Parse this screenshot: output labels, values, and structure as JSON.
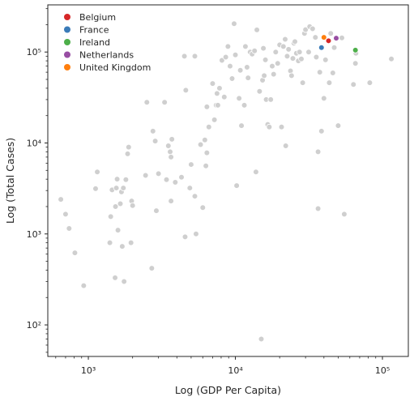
{
  "chart_data": {
    "type": "scatter",
    "xlabel": "Log (GDP Per Capita)",
    "ylabel": "Log (Total Cases)",
    "xscale": "log",
    "yscale": "log",
    "xlim": [
      530,
      150000
    ],
    "ylim": [
      45,
      330000
    ],
    "xticks": [
      {
        "value": 1000,
        "label": "10³"
      },
      {
        "value": 10000,
        "label": "10⁴"
      },
      {
        "value": 100000,
        "label": "10⁵"
      }
    ],
    "yticks": [
      {
        "value": 100,
        "label": "10²"
      },
      {
        "value": 1000,
        "label": "10³"
      },
      {
        "value": 10000,
        "label": "10⁴"
      },
      {
        "value": 100000,
        "label": "10⁵"
      }
    ],
    "grid": false,
    "legend": {
      "placement": "top-left"
    },
    "series": [
      {
        "name": "Belgium",
        "color": "#d62728",
        "points": [
          [
            43000,
            133000
          ]
        ]
      },
      {
        "name": "France",
        "color": "#3a7bb8",
        "points": [
          [
            38500,
            112000
          ]
        ]
      },
      {
        "name": "Ireland",
        "color": "#4daf4a",
        "points": [
          [
            65500,
            105000
          ]
        ]
      },
      {
        "name": "Netherlands",
        "color": "#984ea3",
        "points": [
          [
            48500,
            142000
          ]
        ]
      },
      {
        "name": "United Kingdom",
        "color": "#ff7f0e",
        "points": [
          [
            40000,
            145000
          ]
        ]
      }
    ],
    "other_countries": {
      "color": "#cfcfcf",
      "points": [
        [
          650,
          2400
        ],
        [
          700,
          1650
        ],
        [
          740,
          1150
        ],
        [
          810,
          620
        ],
        [
          930,
          270
        ],
        [
          1120,
          3150
        ],
        [
          1150,
          4800
        ],
        [
          1400,
          800
        ],
        [
          1420,
          1550
        ],
        [
          1450,
          3050
        ],
        [
          1520,
          330
        ],
        [
          1530,
          2000
        ],
        [
          1550,
          3200
        ],
        [
          1570,
          4000
        ],
        [
          1590,
          1100
        ],
        [
          1650,
          2150
        ],
        [
          1680,
          2900
        ],
        [
          1700,
          730
        ],
        [
          1730,
          3200
        ],
        [
          1750,
          300
        ],
        [
          1800,
          3950
        ],
        [
          1850,
          7600
        ],
        [
          1880,
          9000
        ],
        [
          1950,
          800
        ],
        [
          1970,
          2300
        ],
        [
          2000,
          2050
        ],
        [
          2450,
          4400
        ],
        [
          2500,
          28000
        ],
        [
          2700,
          420
        ],
        [
          2750,
          13500
        ],
        [
          2850,
          10500
        ],
        [
          2900,
          1800
        ],
        [
          3000,
          4600
        ],
        [
          3300,
          28000
        ],
        [
          3400,
          3950
        ],
        [
          3500,
          9300
        ],
        [
          3600,
          8000
        ],
        [
          3650,
          7000
        ],
        [
          3700,
          11000
        ],
        [
          3650,
          2300
        ],
        [
          3900,
          3700
        ],
        [
          4300,
          4200
        ],
        [
          4500,
          90000
        ],
        [
          4550,
          930
        ],
        [
          4600,
          38000
        ],
        [
          4900,
          3200
        ],
        [
          5000,
          5800
        ],
        [
          5300,
          90000
        ],
        [
          5400,
          1000
        ],
        [
          5300,
          2600
        ],
        [
          5800,
          9600
        ],
        [
          6000,
          1950
        ],
        [
          6200,
          10800
        ],
        [
          6300,
          5600
        ],
        [
          6400,
          7800
        ],
        [
          6400,
          25000
        ],
        [
          6600,
          15000
        ],
        [
          7000,
          45000
        ],
        [
          7200,
          18000
        ],
        [
          7400,
          26000
        ],
        [
          7500,
          35000
        ],
        [
          7600,
          26000
        ],
        [
          7800,
          40000
        ],
        [
          8100,
          81000
        ],
        [
          8400,
          32000
        ],
        [
          8600,
          88000
        ],
        [
          8900,
          115000
        ],
        [
          9200,
          70000
        ],
        [
          9500,
          51000
        ],
        [
          9800,
          205000
        ],
        [
          10000,
          93000
        ],
        [
          10200,
          3400
        ],
        [
          10600,
          31000
        ],
        [
          10800,
          63000
        ],
        [
          11000,
          15500
        ],
        [
          11500,
          26000
        ],
        [
          11700,
          115000
        ],
        [
          12000,
          68000
        ],
        [
          12200,
          52000
        ],
        [
          12600,
          100000
        ],
        [
          13000,
          95000
        ],
        [
          13500,
          103000
        ],
        [
          13800,
          4800
        ],
        [
          14000,
          175000
        ],
        [
          14600,
          37000
        ],
        [
          15000,
          70
        ],
        [
          15300,
          49000
        ],
        [
          15500,
          110000
        ],
        [
          15700,
          55000
        ],
        [
          16000,
          82000
        ],
        [
          16200,
          30000
        ],
        [
          16600,
          16000
        ],
        [
          17000,
          15000
        ],
        [
          17400,
          30000
        ],
        [
          17800,
          70000
        ],
        [
          18200,
          57000
        ],
        [
          18800,
          100000
        ],
        [
          19400,
          75000
        ],
        [
          20000,
          120000
        ],
        [
          20600,
          15000
        ],
        [
          21200,
          115000
        ],
        [
          21800,
          138000
        ],
        [
          22000,
          9300
        ],
        [
          22500,
          90000
        ],
        [
          23000,
          107000
        ],
        [
          23700,
          62000
        ],
        [
          24100,
          55000
        ],
        [
          24600,
          85000
        ],
        [
          25000,
          125000
        ],
        [
          25400,
          130000
        ],
        [
          26000,
          97000
        ],
        [
          26800,
          80000
        ],
        [
          27300,
          100000
        ],
        [
          28100,
          84000
        ],
        [
          28700,
          46000
        ],
        [
          29500,
          160000
        ],
        [
          30000,
          176000
        ],
        [
          31500,
          100000
        ],
        [
          32000,
          190000
        ],
        [
          33500,
          180000
        ],
        [
          35000,
          145000
        ],
        [
          35500,
          88000
        ],
        [
          36500,
          8000
        ],
        [
          36500,
          1900
        ],
        [
          37500,
          60000
        ],
        [
          38500,
          13500
        ],
        [
          40000,
          31000
        ],
        [
          41000,
          82000
        ],
        [
          43500,
          46000
        ],
        [
          44500,
          160000
        ],
        [
          46000,
          59000
        ],
        [
          47000,
          112000
        ],
        [
          50000,
          15500
        ],
        [
          53000,
          143000
        ],
        [
          55000,
          1650
        ],
        [
          63500,
          44000
        ],
        [
          65500,
          75000
        ],
        [
          66000,
          97000
        ],
        [
          82000,
          46000
        ],
        [
          115000,
          84000
        ]
      ]
    }
  }
}
